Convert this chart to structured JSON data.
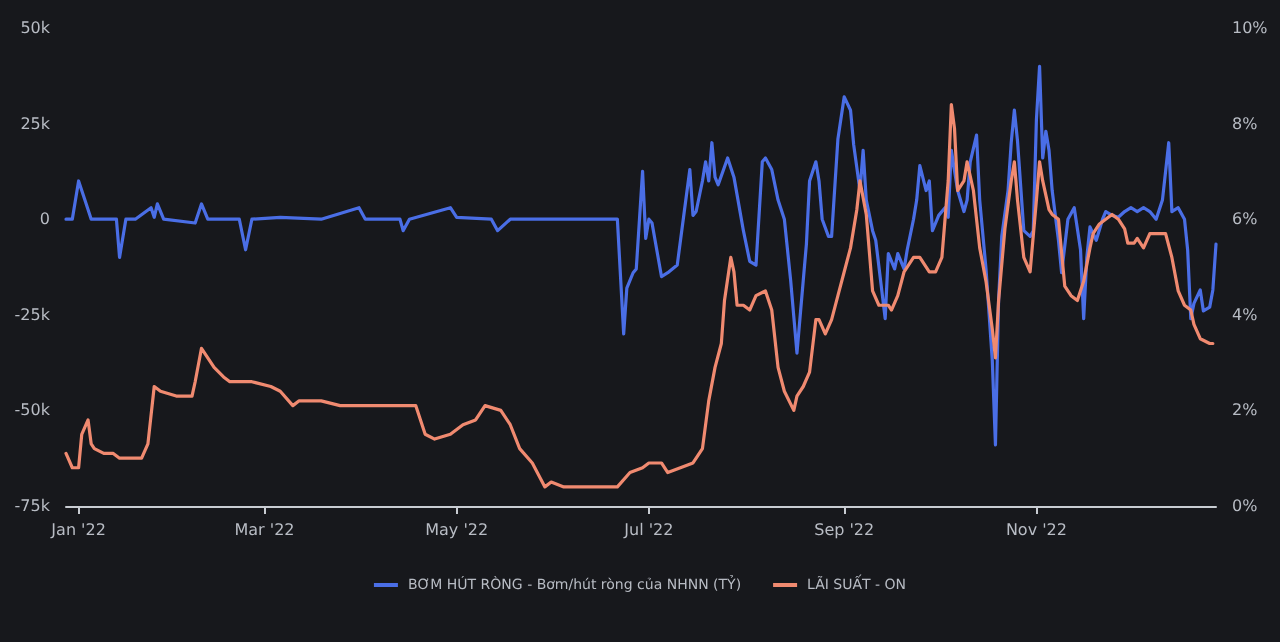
{
  "chart_data": {
    "type": "line",
    "xlim": [
      "2021-12-28",
      "2022-12-28"
    ],
    "xticks": [
      {
        "value": "2022-01-01",
        "label": "Jan '22"
      },
      {
        "value": "2022-03-01",
        "label": "Mar '22"
      },
      {
        "value": "2022-05-01",
        "label": "May '22"
      },
      {
        "value": "2022-07-01",
        "label": "Jul '22"
      },
      {
        "value": "2022-09-01",
        "label": "Sep '22"
      },
      {
        "value": "2022-11-01",
        "label": "Nov '22"
      }
    ],
    "ylim": [
      -75000,
      50000
    ],
    "yticks": [
      {
        "value": -75000,
        "label": "-75k"
      },
      {
        "value": -50000,
        "label": "-50k"
      },
      {
        "value": -25000,
        "label": "-25k"
      },
      {
        "value": 0,
        "label": "0"
      },
      {
        "value": 25000,
        "label": "25k"
      },
      {
        "value": 50000,
        "label": "50k"
      }
    ],
    "y2lim": [
      0,
      10
    ],
    "y2ticks": [
      {
        "value": 0,
        "label": "0%"
      },
      {
        "value": 2,
        "label": "2%"
      },
      {
        "value": 4,
        "label": "4%"
      },
      {
        "value": 6,
        "label": "6%"
      },
      {
        "value": 8,
        "label": "8%"
      },
      {
        "value": 10,
        "label": "10%"
      }
    ],
    "grid": false,
    "legend": "bottom",
    "marker": "none",
    "line_style": "solid",
    "series": [
      {
        "name": "BƠM HÚT RÒNG - Bơm/hút ròng của NHNN (TỶ)",
        "color": "#4a6ee6",
        "x": [
          "2021-12-28",
          "2021-12-30",
          "2022-01-01",
          "2022-01-03",
          "2022-01-05",
          "2022-01-13",
          "2022-01-14",
          "2022-01-16",
          "2022-01-19",
          "2022-01-24",
          "2022-01-25",
          "2022-01-26",
          "2022-01-28",
          "2022-02-07",
          "2022-02-09",
          "2022-02-11",
          "2022-02-21",
          "2022-02-23",
          "2022-02-25",
          "2022-03-06",
          "2022-03-19",
          "2022-03-31",
          "2022-04-02",
          "2022-04-13",
          "2022-04-14",
          "2022-04-16",
          "2022-04-29",
          "2022-05-01",
          "2022-05-12",
          "2022-05-14",
          "2022-05-18",
          "2022-06-21",
          "2022-06-23",
          "2022-06-24",
          "2022-06-26",
          "2022-06-27",
          "2022-06-29",
          "2022-06-30",
          "2022-07-01",
          "2022-07-02",
          "2022-07-05",
          "2022-07-07",
          "2022-07-10",
          "2022-07-12",
          "2022-07-14",
          "2022-07-15",
          "2022-07-16",
          "2022-07-18",
          "2022-07-19",
          "2022-07-20",
          "2022-07-21",
          "2022-07-22",
          "2022-07-23",
          "2022-07-26",
          "2022-07-28",
          "2022-07-31",
          "2022-08-02",
          "2022-08-04",
          "2022-08-06",
          "2022-08-07",
          "2022-08-09",
          "2022-08-11",
          "2022-08-13",
          "2022-08-15",
          "2022-08-17",
          "2022-08-19",
          "2022-08-20",
          "2022-08-21",
          "2022-08-23",
          "2022-08-24",
          "2022-08-25",
          "2022-08-27",
          "2022-08-28",
          "2022-08-30",
          "2022-09-01",
          "2022-09-03",
          "2022-09-04",
          "2022-09-06",
          "2022-09-07",
          "2022-09-08",
          "2022-09-10",
          "2022-09-11",
          "2022-09-14",
          "2022-09-15",
          "2022-09-17",
          "2022-09-18",
          "2022-09-20",
          "2022-09-21",
          "2022-09-23",
          "2022-09-24",
          "2022-09-25",
          "2022-09-27",
          "2022-09-28",
          "2022-09-29",
          "2022-10-01",
          "2022-10-03",
          "2022-10-04",
          "2022-10-05",
          "2022-10-07",
          "2022-10-09",
          "2022-10-10",
          "2022-10-11",
          "2022-10-13",
          "2022-10-14",
          "2022-10-16",
          "2022-10-18",
          "2022-10-19",
          "2022-10-20",
          "2022-10-21",
          "2022-10-23",
          "2022-10-24",
          "2022-10-25",
          "2022-10-26",
          "2022-10-28",
          "2022-10-30",
          "2022-10-31",
          "2022-11-01",
          "2022-11-02",
          "2022-11-03",
          "2022-11-04",
          "2022-11-05",
          "2022-11-06",
          "2022-11-08",
          "2022-11-09",
          "2022-11-11",
          "2022-11-13",
          "2022-11-15",
          "2022-11-16",
          "2022-11-17",
          "2022-11-18",
          "2022-11-20",
          "2022-11-22",
          "2022-11-23",
          "2022-11-25",
          "2022-11-27",
          "2022-11-29",
          "2022-12-01",
          "2022-12-03",
          "2022-12-05",
          "2022-12-07",
          "2022-12-09",
          "2022-12-11",
          "2022-12-13",
          "2022-12-14",
          "2022-12-16",
          "2022-12-18",
          "2022-12-19",
          "2022-12-20",
          "2022-12-21",
          "2022-12-23",
          "2022-12-24",
          "2022-12-26",
          "2022-12-27",
          "2022-12-28"
        ],
        "values": [
          0,
          0,
          10000,
          5000,
          0,
          0,
          -10000,
          0,
          0,
          3000,
          500,
          4000,
          0,
          -1000,
          4000,
          0,
          0,
          -8000,
          0,
          500,
          0,
          3000,
          0,
          0,
          -3000,
          0,
          3000,
          500,
          0,
          -3000,
          0,
          0,
          -30000,
          -18000,
          -14000,
          -13000,
          12500,
          -5000,
          0,
          -1000,
          -15000,
          -14000,
          -12000,
          500,
          13000,
          1000,
          2000,
          10000,
          15000,
          10000,
          20000,
          11000,
          9000,
          16000,
          11000,
          -3000,
          -11000,
          -12000,
          15000,
          16000,
          13000,
          5000,
          0,
          -16000,
          -35000,
          -16000,
          -6500,
          10000,
          15000,
          10000,
          0,
          -4500,
          -4500,
          21000,
          32000,
          28500,
          19500,
          7500,
          18000,
          5000,
          -3000,
          -5500,
          -26000,
          -9000,
          -13000,
          -9000,
          -13000,
          -8000,
          0,
          5000,
          14000,
          7500,
          10000,
          -3000,
          1000,
          3000,
          500,
          18000,
          7500,
          2000,
          5000,
          15000,
          22000,
          5000,
          -13000,
          -37000,
          -59000,
          -21000,
          -4500,
          7500,
          20000,
          28500,
          20500,
          -3000,
          -4500,
          -3000,
          26000,
          40000,
          16000,
          23000,
          18000,
          7500,
          -5500,
          -14000,
          0,
          3000,
          -8000,
          -26000,
          -10000,
          -2000,
          -5500,
          0,
          2000,
          1000,
          500,
          2000,
          3000,
          2000,
          3000,
          2000,
          0,
          5000,
          20000,
          2000,
          3000,
          0,
          -8000,
          -26000,
          -22000,
          -18500,
          -24000,
          -23000,
          -18500,
          -6500
        ]
      },
      {
        "name": "LÃI SUẤT - ON",
        "color": "#f08a70",
        "axis": "y2",
        "x": [
          "2021-12-28",
          "2021-12-30",
          "2022-01-01",
          "2022-01-02",
          "2022-01-04",
          "2022-01-05",
          "2022-01-06",
          "2022-01-09",
          "2022-01-12",
          "2022-01-14",
          "2022-01-17",
          "2022-01-21",
          "2022-01-23",
          "2022-01-25",
          "2022-01-27",
          "2022-02-01",
          "2022-02-06",
          "2022-02-07",
          "2022-02-09",
          "2022-02-11",
          "2022-02-13",
          "2022-02-16",
          "2022-02-18",
          "2022-02-25",
          "2022-03-03",
          "2022-03-06",
          "2022-03-10",
          "2022-03-12",
          "2022-03-19",
          "2022-03-25",
          "2022-03-30",
          "2022-04-03",
          "2022-04-13",
          "2022-04-18",
          "2022-04-21",
          "2022-04-24",
          "2022-04-29",
          "2022-05-03",
          "2022-05-07",
          "2022-05-10",
          "2022-05-15",
          "2022-05-18",
          "2022-05-21",
          "2022-05-25",
          "2022-05-29",
          "2022-05-31",
          "2022-06-04",
          "2022-06-09",
          "2022-06-15",
          "2022-06-21",
          "2022-06-25",
          "2022-06-29",
          "2022-07-01",
          "2022-07-05",
          "2022-07-07",
          "2022-07-11",
          "2022-07-15",
          "2022-07-18",
          "2022-07-20",
          "2022-07-22",
          "2022-07-24",
          "2022-07-25",
          "2022-07-27",
          "2022-07-28",
          "2022-07-29",
          "2022-07-31",
          "2022-08-02",
          "2022-08-04",
          "2022-08-07",
          "2022-08-09",
          "2022-08-11",
          "2022-08-13",
          "2022-08-16",
          "2022-08-17",
          "2022-08-19",
          "2022-08-21",
          "2022-08-23",
          "2022-08-24",
          "2022-08-26",
          "2022-08-28",
          "2022-08-30",
          "2022-09-01",
          "2022-09-03",
          "2022-09-05",
          "2022-09-06",
          "2022-09-08",
          "2022-09-10",
          "2022-09-12",
          "2022-09-15",
          "2022-09-16",
          "2022-09-18",
          "2022-09-20",
          "2022-09-23",
          "2022-09-25",
          "2022-09-28",
          "2022-09-30",
          "2022-10-02",
          "2022-10-04",
          "2022-10-05",
          "2022-10-06",
          "2022-10-07",
          "2022-10-09",
          "2022-10-10",
          "2022-10-12",
          "2022-10-14",
          "2022-10-16",
          "2022-10-18",
          "2022-10-19",
          "2022-10-20",
          "2022-10-22",
          "2022-10-24",
          "2022-10-25",
          "2022-10-26",
          "2022-10-28",
          "2022-10-30",
          "2022-11-01",
          "2022-11-02",
          "2022-11-03",
          "2022-11-05",
          "2022-11-06",
          "2022-11-08",
          "2022-11-09",
          "2022-11-10",
          "2022-11-12",
          "2022-11-14",
          "2022-11-16",
          "2022-11-18",
          "2022-11-19",
          "2022-11-21",
          "2022-11-23",
          "2022-11-25",
          "2022-11-27",
          "2022-11-29",
          "2022-11-30",
          "2022-12-02",
          "2022-12-03",
          "2022-12-05",
          "2022-12-07",
          "2022-12-09",
          "2022-12-12",
          "2022-12-14",
          "2022-12-16",
          "2022-12-18",
          "2022-12-20",
          "2022-12-21",
          "2022-12-23",
          "2022-12-26",
          "2022-12-27"
        ],
        "values": [
          1.1,
          0.8,
          0.8,
          1.5,
          1.8,
          1.3,
          1.2,
          1.1,
          1.1,
          1.0,
          1.0,
          1.0,
          1.3,
          2.5,
          2.4,
          2.3,
          2.3,
          2.6,
          3.3,
          3.1,
          2.9,
          2.7,
          2.6,
          2.6,
          2.5,
          2.4,
          2.1,
          2.2,
          2.2,
          2.1,
          2.1,
          2.1,
          2.1,
          2.1,
          1.5,
          1.4,
          1.5,
          1.7,
          1.8,
          2.1,
          2.0,
          1.7,
          1.2,
          0.9,
          0.4,
          0.5,
          0.4,
          0.4,
          0.4,
          0.4,
          0.7,
          0.8,
          0.9,
          0.9,
          0.7,
          0.8,
          0.9,
          1.2,
          2.2,
          2.9,
          3.4,
          4.3,
          5.2,
          4.9,
          4.2,
          4.2,
          4.1,
          4.4,
          4.5,
          4.1,
          2.9,
          2.4,
          2.0,
          2.3,
          2.5,
          2.8,
          3.9,
          3.9,
          3.6,
          3.9,
          4.4,
          4.9,
          5.4,
          6.2,
          6.8,
          6.1,
          4.5,
          4.2,
          4.2,
          4.1,
          4.4,
          4.9,
          5.2,
          5.2,
          4.9,
          4.9,
          5.2,
          6.8,
          8.4,
          7.9,
          6.6,
          6.8,
          7.2,
          6.6,
          5.4,
          4.7,
          3.7,
          3.1,
          4.3,
          5.8,
          6.8,
          7.2,
          6.4,
          5.2,
          4.9,
          6.4,
          7.2,
          6.8,
          6.2,
          6.1,
          6.0,
          5.3,
          4.6,
          4.4,
          4.3,
          4.7,
          5.4,
          5.7,
          5.9,
          6.0,
          6.1,
          6.0,
          5.8,
          5.5,
          5.5,
          5.6,
          5.4,
          5.7,
          5.7,
          5.7,
          5.2,
          4.5,
          4.2,
          4.1,
          3.8,
          3.5,
          3.4,
          3.4
        ]
      }
    ]
  }
}
